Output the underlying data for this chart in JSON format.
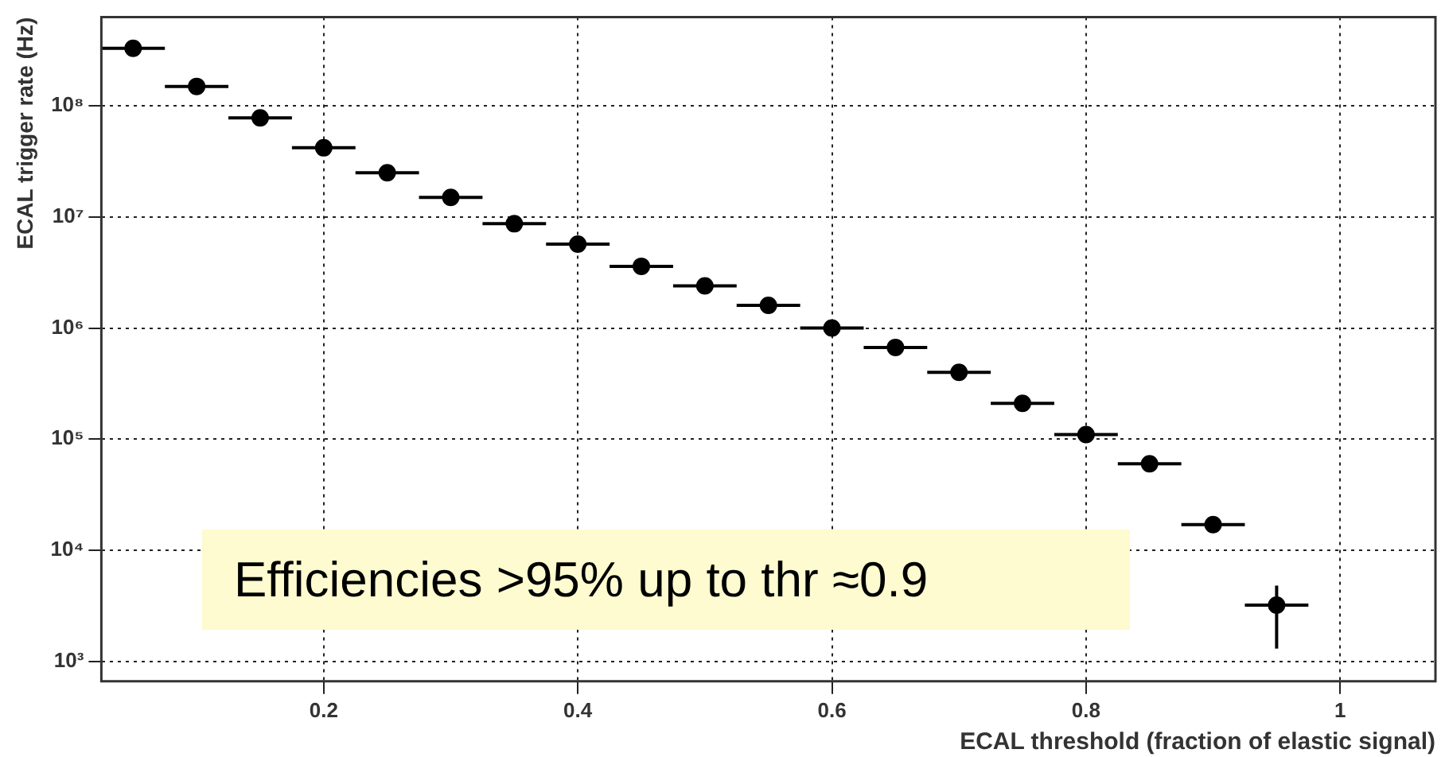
{
  "chart_data": {
    "type": "scatter",
    "xlabel": "ECAL threshold (fraction of elastic signal)",
    "ylabel": "ECAL trigger rate (Hz)",
    "annotations": [
      "Efficiencies >95% up to thr ≈0.9"
    ],
    "x": [
      0.05,
      0.1,
      0.15,
      0.2,
      0.25,
      0.3,
      0.35,
      0.4,
      0.45,
      0.5,
      0.55,
      0.6,
      0.65,
      0.7,
      0.75,
      0.8,
      0.85,
      0.9,
      0.95
    ],
    "series": [
      {
        "color": "#000000",
        "values": [
          330000000,
          150000000,
          78000000,
          42000000,
          25000000,
          15000000,
          8700000,
          5700000,
          3600000,
          2400000,
          1600000,
          1000000,
          670000,
          400000,
          210000,
          110000,
          60000,
          17000,
          3200
        ],
        "errors": [
          null,
          null,
          null,
          null,
          null,
          null,
          null,
          null,
          null,
          null,
          null,
          null,
          null,
          null,
          null,
          null,
          null,
          [
            14500,
            20000
          ],
          [
            1300,
            4800
          ]
        ],
        "xerrors": [
          0.025,
          0.025,
          0.025,
          0.025,
          0.025,
          0.025,
          0.025,
          0.025,
          0.025,
          0.025,
          0.025,
          0.025,
          0.025,
          0.025,
          0.025,
          0.025,
          0.025,
          0.025,
          0.025
        ]
      }
    ],
    "marker": "circle",
    "log": "y",
    "grid": true,
    "legend": false,
    "xlim": [
      0.025,
      1.075
    ],
    "xticks": [
      0.2,
      0.4,
      0.6,
      0.8,
      1
    ],
    "ylim": [
      660,
      630000000
    ],
    "yticks": [
      {
        "value": 1000,
        "label": "10³"
      },
      {
        "value": 10000,
        "label": "10⁴"
      },
      {
        "value": 100000,
        "label": "10⁵"
      },
      {
        "value": 1000000,
        "label": "10⁶"
      },
      {
        "value": 10000000,
        "label": "10⁷"
      },
      {
        "value": 100000000,
        "label": "10⁸"
      }
    ]
  }
}
